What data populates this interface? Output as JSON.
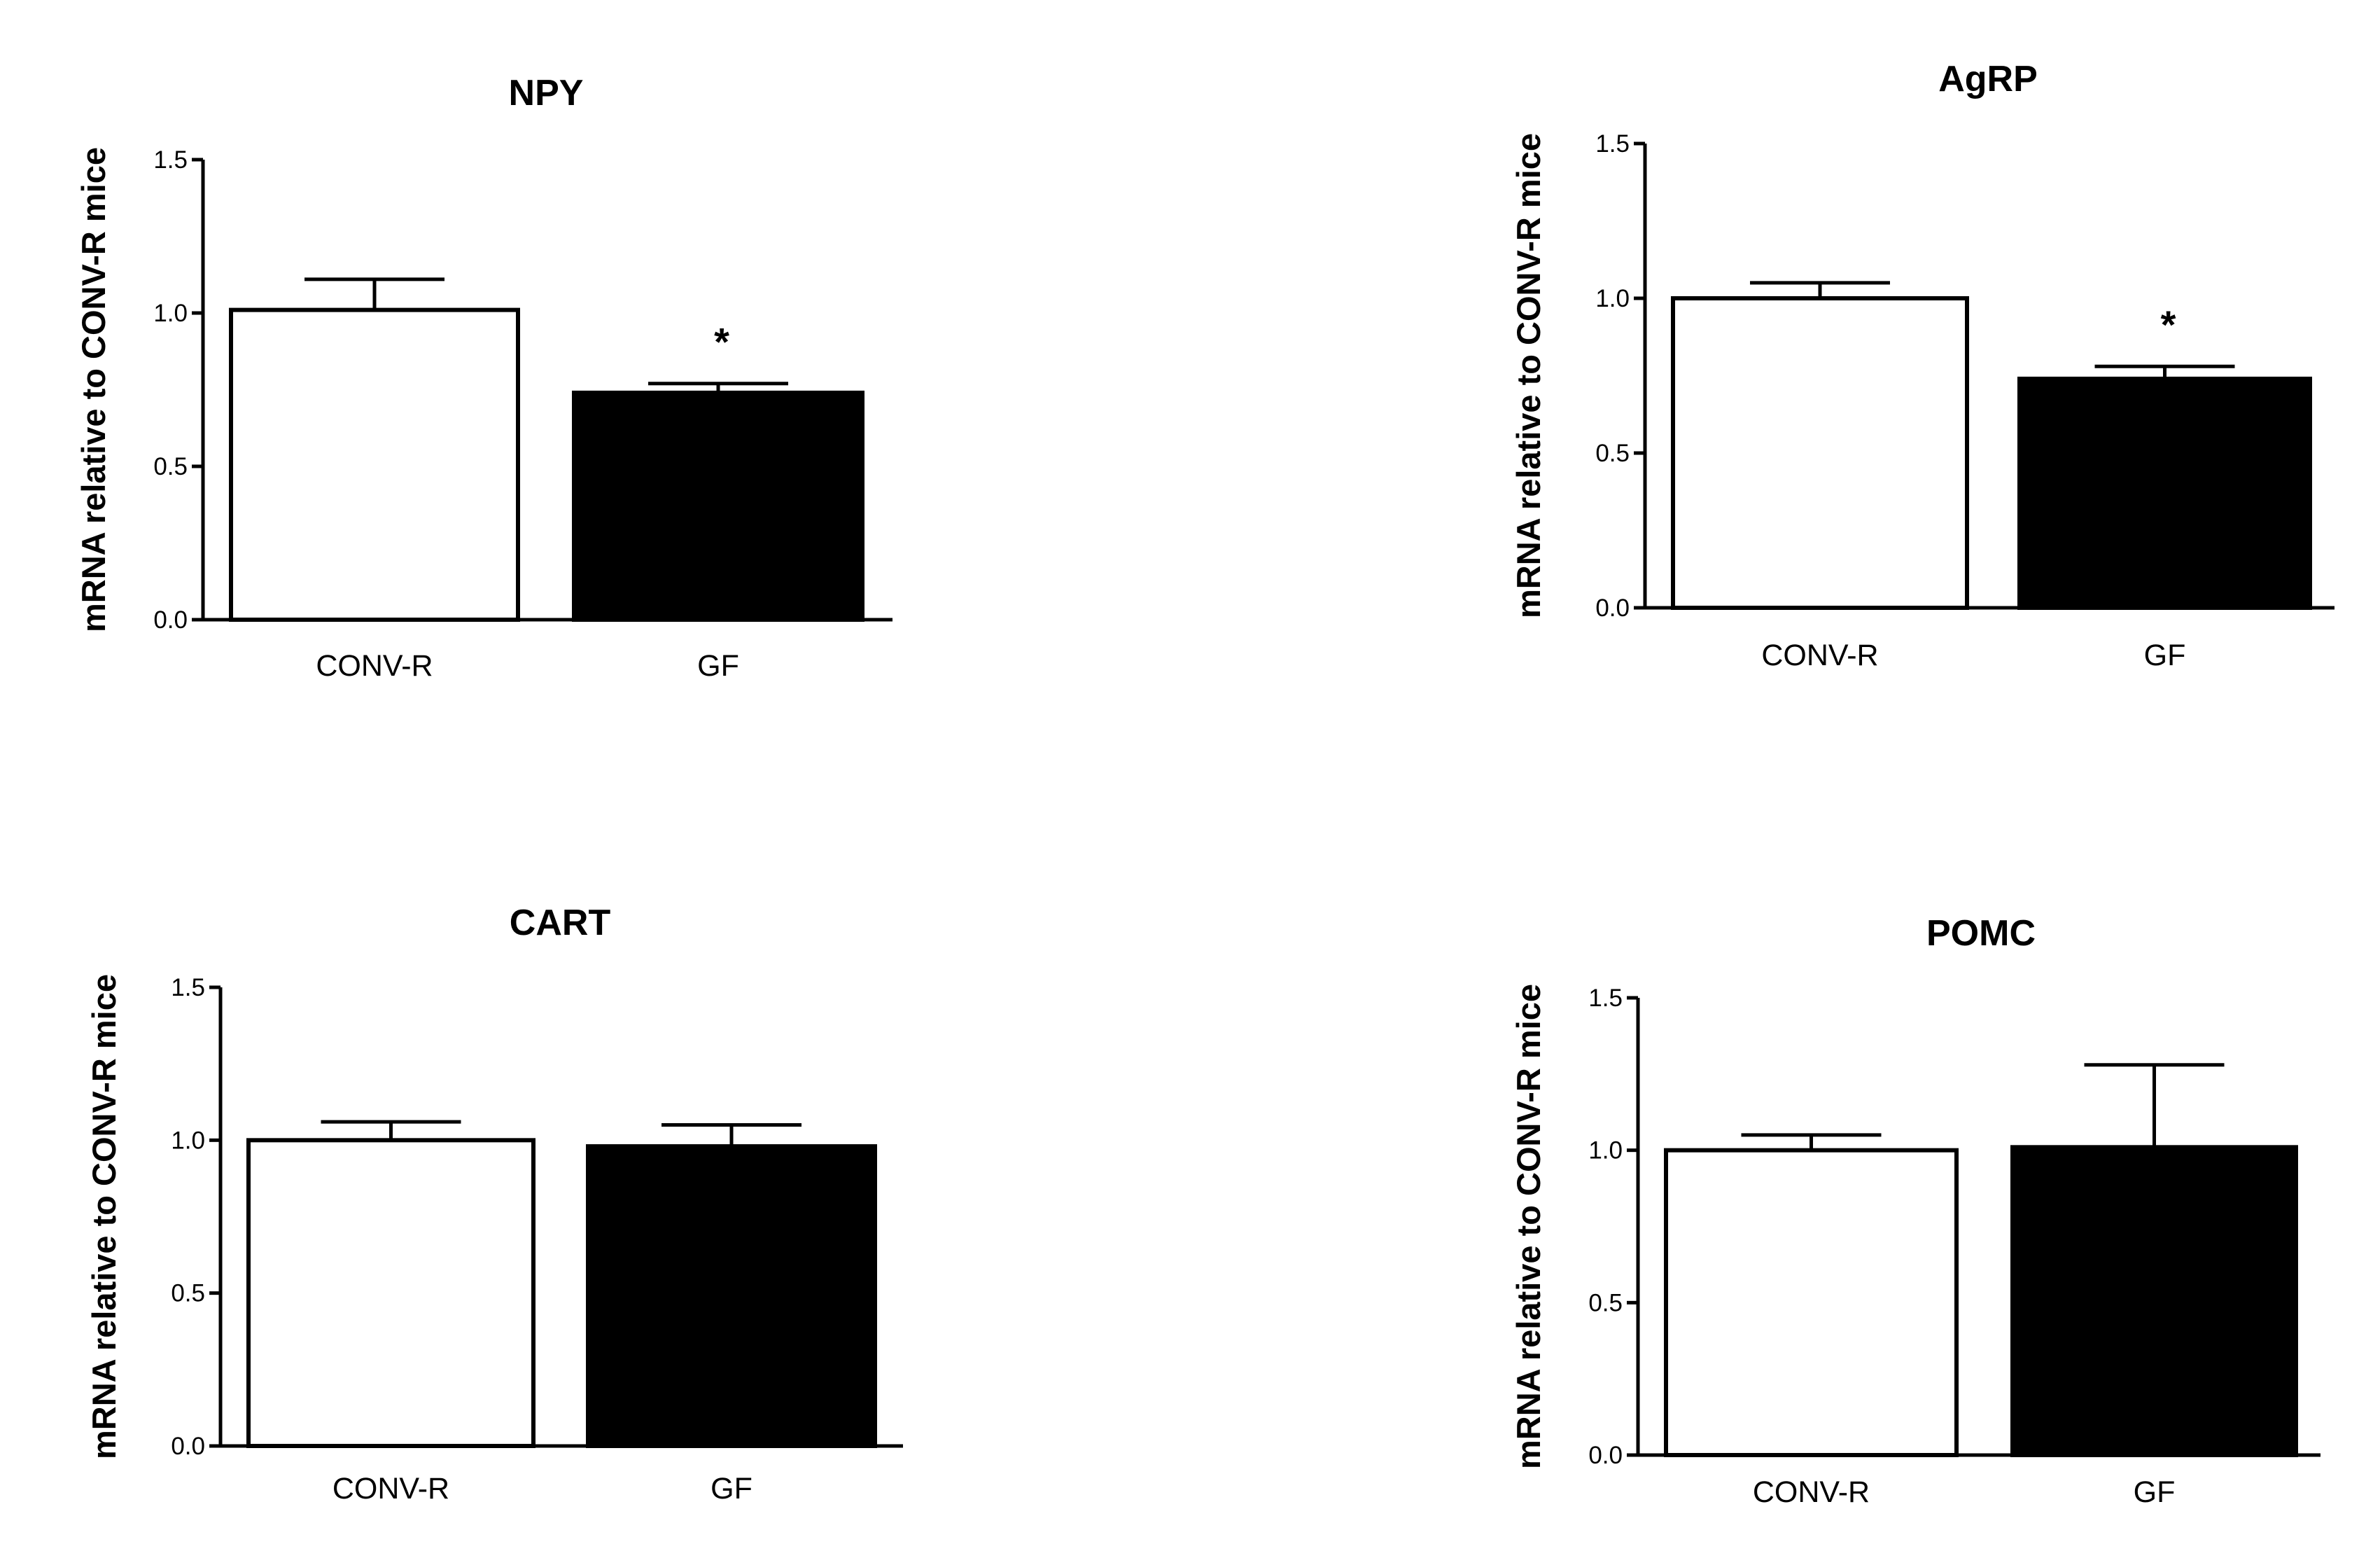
{
  "chart_data": [
    {
      "type": "bar",
      "title": "NPY",
      "ylabel": "mRNA relative to CONV-R mice",
      "xlabel": "",
      "ylim": [
        0,
        1.5
      ],
      "yticks": [
        "0.0",
        "0.5",
        "1.0",
        "1.5"
      ],
      "categories": [
        "CONV-R",
        "GF"
      ],
      "values": [
        1.01,
        0.74
      ],
      "errors": [
        0.1,
        0.03
      ],
      "bar_colors": [
        "#ffffff",
        "#000000"
      ],
      "annotations": [
        "",
        "*"
      ]
    },
    {
      "type": "bar",
      "title": "AgRP",
      "ylabel": "mRNA relative to CONV-R mice",
      "xlabel": "",
      "ylim": [
        0,
        1.5
      ],
      "yticks": [
        "0.0",
        "0.5",
        "1.0",
        "1.5"
      ],
      "categories": [
        "CONV-R",
        "GF"
      ],
      "values": [
        1.0,
        0.74
      ],
      "errors": [
        0.05,
        0.04
      ],
      "bar_colors": [
        "#ffffff",
        "#000000"
      ],
      "annotations": [
        "",
        "*"
      ]
    },
    {
      "type": "bar",
      "title": "CART",
      "ylabel": "mRNA relative to CONV-R mice",
      "xlabel": "",
      "ylim": [
        0,
        1.5
      ],
      "yticks": [
        "0.0",
        "0.5",
        "1.0",
        "1.5"
      ],
      "categories": [
        "CONV-R",
        "GF"
      ],
      "values": [
        1.0,
        0.98
      ],
      "errors": [
        0.06,
        0.07
      ],
      "bar_colors": [
        "#ffffff",
        "#000000"
      ],
      "annotations": [
        "",
        ""
      ]
    },
    {
      "type": "bar",
      "title": "POMC",
      "ylabel": "mRNA relative to CONV-R mice",
      "xlabel": "",
      "ylim": [
        0,
        1.5
      ],
      "yticks": [
        "0.0",
        "0.5",
        "1.0",
        "1.5"
      ],
      "categories": [
        "CONV-R",
        "GF"
      ],
      "values": [
        1.0,
        1.01
      ],
      "errors": [
        0.05,
        0.27
      ],
      "bar_colors": [
        "#ffffff",
        "#000000"
      ],
      "annotations": [
        "",
        ""
      ]
    }
  ]
}
